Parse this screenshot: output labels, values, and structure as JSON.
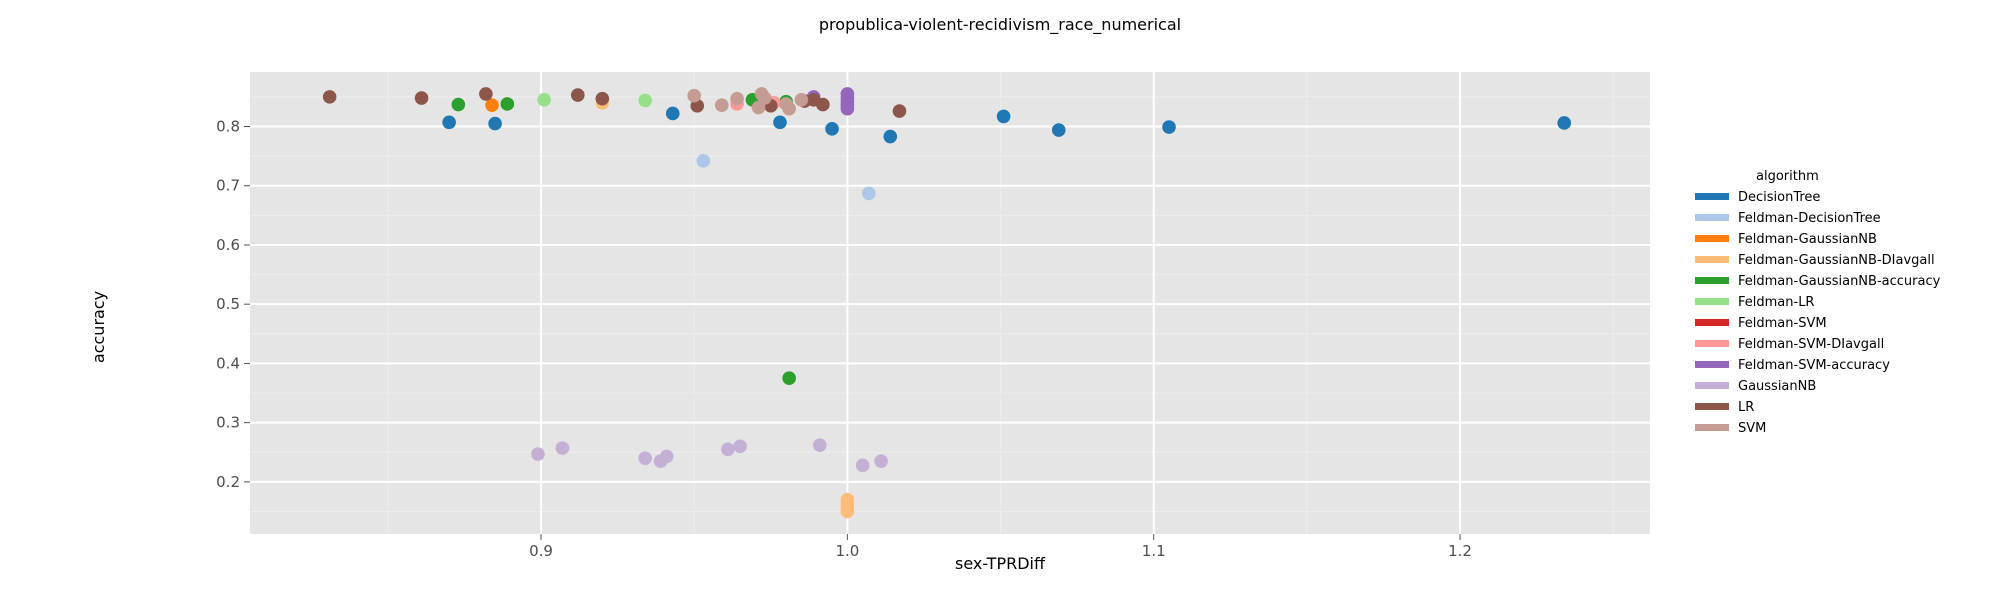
{
  "chart_data": {
    "type": "scatter",
    "title": "propublica-violent-recidivism_race_numerical",
    "xlabel": "sex-TPRDiff",
    "ylabel": "accuracy",
    "xlim": [
      0.805,
      1.262
    ],
    "ylim": [
      0.112,
      0.892
    ],
    "x_ticks": [
      0.9,
      1.0,
      1.1,
      1.2
    ],
    "x_tick_labels": [
      "0.9",
      "1.0",
      "1.1",
      "1.2"
    ],
    "y_ticks": [
      0.2,
      0.3,
      0.4,
      0.5,
      0.6,
      0.7,
      0.8
    ],
    "y_tick_labels": [
      "0.2",
      "0.3",
      "0.4",
      "0.5",
      "0.6",
      "0.7",
      "0.8"
    ],
    "grid": true,
    "background": "#e5e5e5",
    "legend_position": "right",
    "legend_title": "algorithm",
    "series": [
      {
        "name": "DecisionTree",
        "color": "#1f77b4",
        "points": [
          [
            0.87,
            0.807
          ],
          [
            0.885,
            0.805
          ],
          [
            0.943,
            0.822
          ],
          [
            0.978,
            0.807
          ],
          [
            0.995,
            0.796
          ],
          [
            1.014,
            0.783
          ],
          [
            1.051,
            0.817
          ],
          [
            1.069,
            0.794
          ],
          [
            1.105,
            0.799
          ],
          [
            1.234,
            0.806
          ]
        ]
      },
      {
        "name": "Feldman-DecisionTree",
        "color": "#aec7e8",
        "points": [
          [
            0.953,
            0.742
          ],
          [
            1.007,
            0.687
          ]
        ]
      },
      {
        "name": "Feldman-GaussianNB",
        "color": "#ff7f0e",
        "points": [
          [
            0.884,
            0.836
          ]
        ]
      },
      {
        "name": "Feldman-GaussianNB-DIavgall",
        "color": "#ffbb78",
        "points": [
          [
            0.92,
            0.84
          ],
          [
            1.0,
            0.17
          ],
          [
            1.0,
            0.162
          ],
          [
            1.0,
            0.155
          ],
          [
            1.0,
            0.15
          ]
        ]
      },
      {
        "name": "Feldman-GaussianNB-accuracy",
        "color": "#2ca02c",
        "points": [
          [
            0.873,
            0.837
          ],
          [
            0.889,
            0.838
          ],
          [
            0.969,
            0.845
          ],
          [
            0.98,
            0.842
          ],
          [
            0.981,
            0.375
          ]
        ]
      },
      {
        "name": "Feldman-LR",
        "color": "#98df8a",
        "points": [
          [
            0.901,
            0.845
          ],
          [
            0.934,
            0.844
          ]
        ]
      },
      {
        "name": "Feldman-SVM",
        "color": "#d62728",
        "points": []
      },
      {
        "name": "Feldman-SVM-DIavgall",
        "color": "#ff9896",
        "points": [
          [
            0.964,
            0.838
          ],
          [
            0.976,
            0.84
          ]
        ]
      },
      {
        "name": "Feldman-SVM-accuracy",
        "color": "#9467bd",
        "points": [
          [
            0.989,
            0.85
          ],
          [
            1.0,
            0.855
          ],
          [
            1.0,
            0.848
          ],
          [
            1.0,
            0.842
          ],
          [
            1.0,
            0.836
          ],
          [
            1.0,
            0.83
          ]
        ]
      },
      {
        "name": "GaussianNB",
        "color": "#c5b0d5",
        "points": [
          [
            0.899,
            0.247
          ],
          [
            0.907,
            0.257
          ],
          [
            0.934,
            0.24
          ],
          [
            0.939,
            0.235
          ],
          [
            0.941,
            0.243
          ],
          [
            0.961,
            0.255
          ],
          [
            0.965,
            0.26
          ],
          [
            0.991,
            0.262
          ],
          [
            1.005,
            0.228
          ],
          [
            1.011,
            0.235
          ]
        ]
      },
      {
        "name": "LR",
        "color": "#8c564b",
        "points": [
          [
            0.831,
            0.85
          ],
          [
            0.861,
            0.848
          ],
          [
            0.882,
            0.855
          ],
          [
            0.912,
            0.853
          ],
          [
            0.92,
            0.847
          ],
          [
            0.951,
            0.835
          ],
          [
            0.975,
            0.835
          ],
          [
            0.986,
            0.843
          ],
          [
            0.989,
            0.845
          ],
          [
            0.992,
            0.837
          ],
          [
            1.017,
            0.826
          ]
        ]
      },
      {
        "name": "SVM",
        "color": "#c49c94",
        "points": [
          [
            0.95,
            0.852
          ],
          [
            0.959,
            0.836
          ],
          [
            0.964,
            0.847
          ],
          [
            0.971,
            0.832
          ],
          [
            0.972,
            0.855
          ],
          [
            0.973,
            0.848
          ],
          [
            0.98,
            0.838
          ],
          [
            0.981,
            0.83
          ],
          [
            0.985,
            0.845
          ]
        ]
      }
    ]
  }
}
